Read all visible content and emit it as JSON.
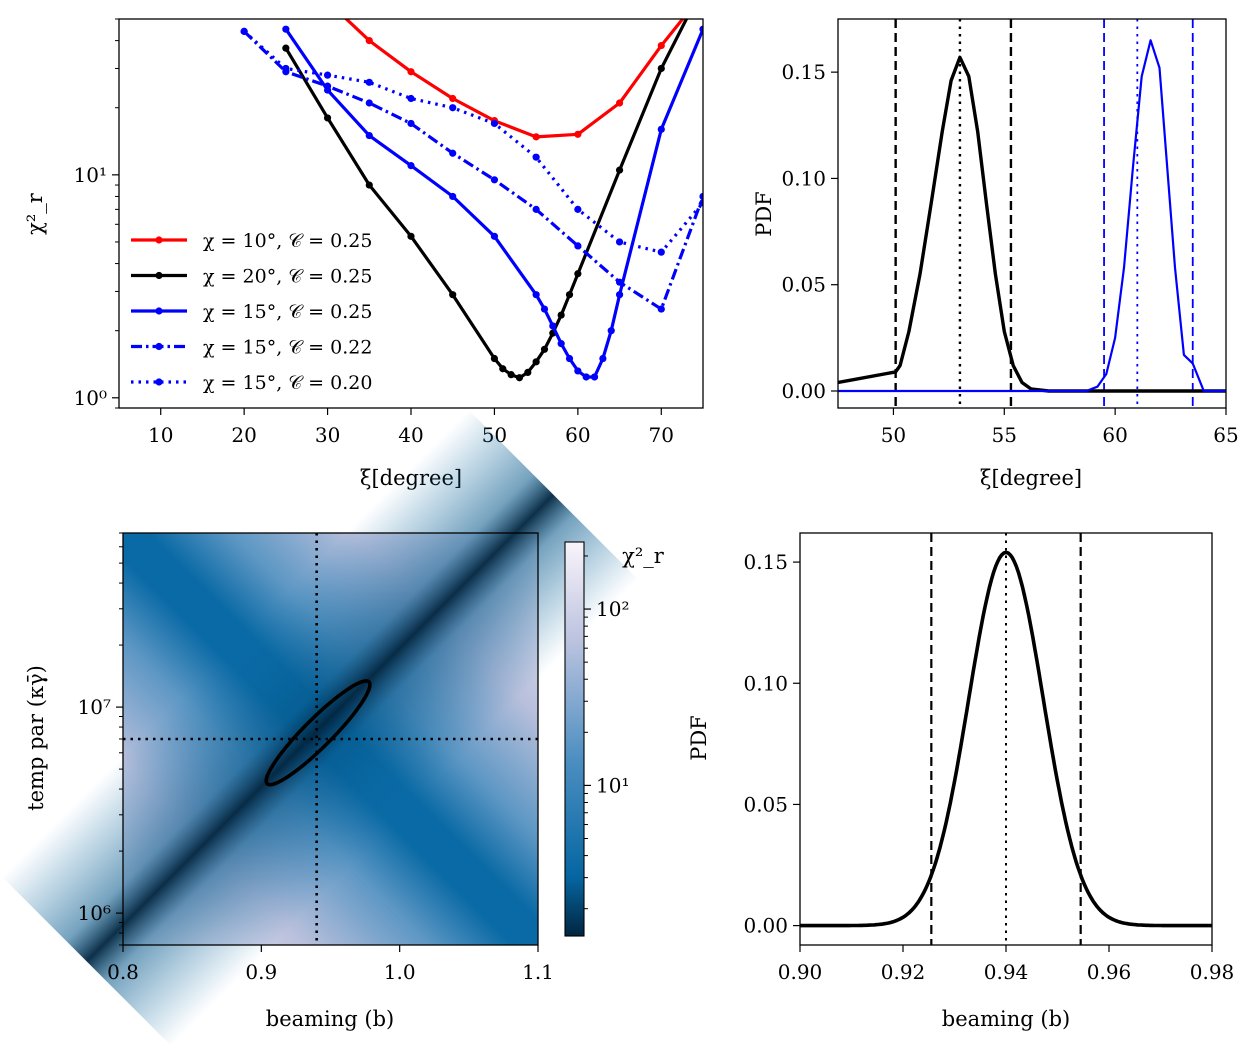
{
  "chart_data": [
    {
      "type": "line",
      "panel": "top-left",
      "xlabel": "ξ[degree]",
      "ylabel": "χ²_r",
      "xlim": [
        5,
        75
      ],
      "ylim": [
        0.9,
        50
      ],
      "yscale": "log",
      "xticks": [
        "10",
        "20",
        "30",
        "40",
        "50",
        "60",
        "70"
      ],
      "yticks": [
        "10⁰",
        "10¹"
      ],
      "legend_position": "lower-left",
      "series": [
        {
          "name": "χ = 10°, 𝒞 = 0.25",
          "color": "#ff0000",
          "style": "solid",
          "x": [
            30,
            35,
            40,
            45,
            50,
            55,
            60,
            65,
            70,
            75
          ],
          "y": [
            60,
            40,
            29,
            22,
            17.5,
            14.8,
            15.2,
            21,
            38,
            65
          ]
        },
        {
          "name": "χ = 20°, 𝒞 = 0.25",
          "color": "#000000",
          "style": "solid",
          "x": [
            25,
            30,
            35,
            40,
            45,
            50,
            51,
            52,
            53,
            54,
            55,
            56,
            57,
            58,
            59,
            60,
            65,
            70,
            75
          ],
          "y": [
            37,
            18,
            9,
            5.3,
            2.9,
            1.5,
            1.35,
            1.27,
            1.23,
            1.3,
            1.45,
            1.65,
            1.95,
            2.35,
            2.9,
            3.6,
            10.5,
            30,
            70
          ]
        },
        {
          "name": "χ = 15°, 𝒞 = 0.25",
          "color": "#0000ff",
          "style": "solid",
          "x": [
            25,
            30,
            35,
            40,
            45,
            50,
            55,
            56,
            57,
            58,
            59,
            60,
            61,
            62,
            63,
            64,
            65,
            70,
            75
          ],
          "y": [
            45,
            24,
            15,
            11,
            8,
            5.3,
            2.9,
            2.5,
            2.1,
            1.75,
            1.5,
            1.32,
            1.24,
            1.24,
            1.5,
            2.0,
            2.9,
            16,
            45
          ]
        },
        {
          "name": "χ = 15°, 𝒞 = 0.22",
          "color": "#0000ff",
          "style": "dashdot",
          "x": [
            20,
            25,
            30,
            35,
            40,
            45,
            50,
            55,
            60,
            65,
            70,
            75
          ],
          "y": [
            44,
            29,
            25,
            21,
            17,
            12.5,
            9.5,
            7,
            4.8,
            3.3,
            2.5,
            8
          ]
        },
        {
          "name": "χ = 15°, 𝒞 = 0.20",
          "color": "#0000ff",
          "style": "dotted",
          "x": [
            20,
            25,
            30,
            35,
            40,
            45,
            50,
            55,
            60,
            65,
            70,
            75
          ],
          "y": [
            44,
            30,
            28,
            26,
            22,
            20,
            17,
            12,
            7,
            5,
            4.5,
            7.5
          ]
        }
      ]
    },
    {
      "type": "line",
      "panel": "top-right",
      "xlabel": "ξ[degree]",
      "ylabel": "PDF",
      "xlim": [
        47.5,
        65
      ],
      "ylim": [
        -0.008,
        0.175
      ],
      "xticks": [
        "50",
        "55",
        "60",
        "65"
      ],
      "yticks": [
        "0.00",
        "0.05",
        "0.10",
        "0.15"
      ],
      "series": [
        {
          "color": "#000000",
          "style": "solid",
          "x": [
            47.5,
            50.1,
            50.3,
            50.7,
            51.2,
            51.7,
            52.2,
            52.6,
            53.0,
            53.4,
            53.8,
            54.2,
            54.6,
            55.0,
            55.4,
            55.8,
            56.2,
            57.0,
            58.0,
            65.0
          ],
          "y": [
            0.004,
            0.009,
            0.012,
            0.028,
            0.055,
            0.088,
            0.122,
            0.146,
            0.157,
            0.148,
            0.122,
            0.088,
            0.055,
            0.028,
            0.012,
            0.004,
            0.001,
            0.0,
            0.0,
            0.0
          ]
        },
        {
          "color": "#0000ff",
          "style": "solid",
          "x": [
            47.5,
            58.7,
            59.2,
            59.6,
            60.0,
            60.4,
            60.8,
            61.2,
            61.6,
            62.0,
            62.3,
            62.7,
            63.1,
            63.5,
            64.0,
            65.0
          ],
          "y": [
            0.0,
            0.0,
            0.002,
            0.008,
            0.025,
            0.058,
            0.105,
            0.148,
            0.165,
            0.152,
            0.112,
            0.058,
            0.017,
            0.013,
            0.0,
            0.0
          ]
        }
      ],
      "vlines": [
        {
          "x": 50.1,
          "color": "#000000",
          "style": "dashed"
        },
        {
          "x": 53.0,
          "color": "#000000",
          "style": "dotted"
        },
        {
          "x": 55.3,
          "color": "#000000",
          "style": "dashed"
        },
        {
          "x": 59.5,
          "color": "#0000ff",
          "style": "dashed"
        },
        {
          "x": 61.0,
          "color": "#0000ff",
          "style": "dotted"
        },
        {
          "x": 63.5,
          "color": "#0000ff",
          "style": "dashed"
        }
      ]
    },
    {
      "type": "heatmap",
      "panel": "bottom-left",
      "xlabel": "beaming (b)",
      "ylabel": "temp par (κγ̄)",
      "xlim": [
        0.8,
        1.1
      ],
      "ylim": [
        700000,
        70000000
      ],
      "yscale": "log",
      "xticks": [
        "0.8",
        "0.9",
        "1.0",
        "1.1"
      ],
      "yticks": [
        "10⁶",
        "10⁷"
      ],
      "colorbar_label": "χ²_r",
      "colorbar_ticks": [
        "10¹",
        "10²"
      ],
      "colormap": [
        "#01253f",
        "#0768a8",
        "#4a93c4",
        "#a8b8d8",
        "#f5f0f8"
      ],
      "best_fit": {
        "b": 0.94,
        "temp_par": 7000000
      },
      "contour_center": {
        "b": 0.941,
        "temp_par": 7500000
      }
    },
    {
      "type": "line",
      "panel": "bottom-right",
      "xlabel": "beaming (b)",
      "ylabel": "PDF",
      "xlim": [
        0.9,
        0.98
      ],
      "ylim": [
        -0.008,
        0.162
      ],
      "xticks": [
        "0.90",
        "0.92",
        "0.94",
        "0.96",
        "0.98"
      ],
      "yticks": [
        "0.00",
        "0.05",
        "0.10",
        "0.15"
      ],
      "gaussian": {
        "mean": 0.94,
        "sigma": 0.00725,
        "peak": 0.154
      },
      "vlines": [
        {
          "x": 0.9255,
          "color": "#000000",
          "style": "dashed"
        },
        {
          "x": 0.94,
          "color": "#000000",
          "style": "dotted"
        },
        {
          "x": 0.9545,
          "color": "#000000",
          "style": "dashed"
        }
      ]
    }
  ]
}
